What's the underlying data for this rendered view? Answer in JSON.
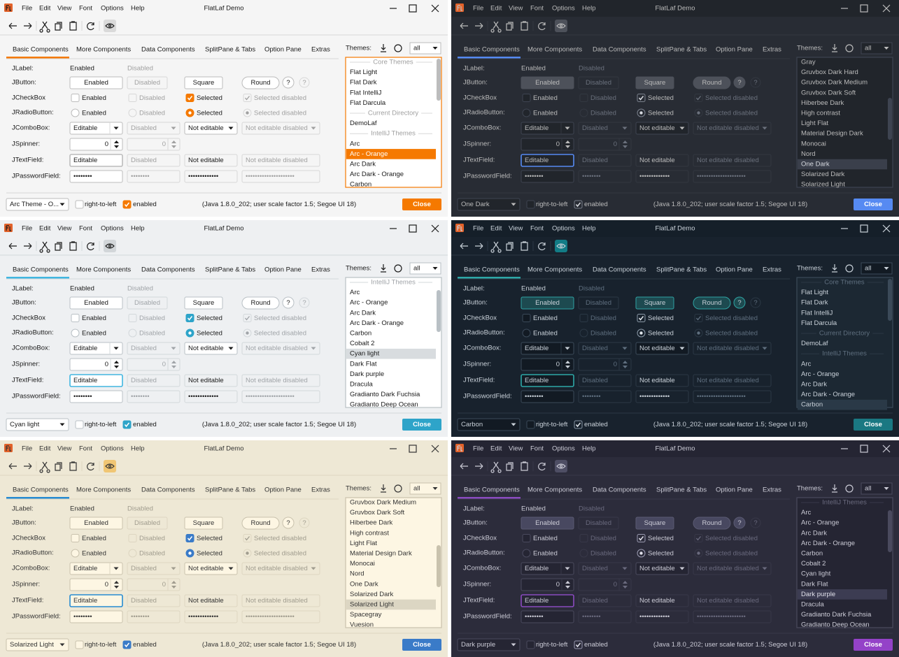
{
  "title": "FlatLaf Demo",
  "menus": [
    "File",
    "Edit",
    "View",
    "Font",
    "Options",
    "Help"
  ],
  "tabs": [
    "Basic Components",
    "More Components",
    "Data Components",
    "SplitPane & Tabs",
    "Option Pane",
    "Extras"
  ],
  "themes_label": "Themes:",
  "theme_filter": "all",
  "rows": [
    "JLabel:",
    "JButton:",
    "JCheckBox",
    "JRadioButton:",
    "JComboBox:",
    "JSpinner:",
    "JTextField:",
    "JPasswordField:"
  ],
  "label_row": [
    "Enabled",
    "Disabled"
  ],
  "button_row": [
    "Enabled",
    "Disabled",
    "Square",
    "Round"
  ],
  "help": "?",
  "checkbox_row": [
    "Enabled",
    "Disabled",
    "Selected",
    "Selected disabled"
  ],
  "radio_row": [
    "Enabled",
    "Disabled",
    "Selected",
    "Selected disabled"
  ],
  "combo_row": [
    "Editable",
    "Disabled",
    "Not editable",
    "Not editable disabled"
  ],
  "spinner_row": [
    "0",
    "0"
  ],
  "textfield_row": [
    "Editable",
    "Disabled",
    "Not editable",
    "Not editable disabled"
  ],
  "password_row": [
    "••••••••",
    "••••••••",
    "•••••••••••••",
    "•••••••••••••••••••••"
  ],
  "right_to_left": "right-to-left",
  "enabled": "enabled",
  "status": "(Java 1.8.0_202;  user scale factor 1.5; Segoe UI 18)",
  "close": "Close",
  "windows": [
    {
      "theme": "Arc Theme - O...",
      "selected": 9,
      "theme_list": [
        {
          "label": "Core Themes",
          "header": true
        },
        {
          "label": "Flat Light"
        },
        {
          "label": "Flat Dark"
        },
        {
          "label": "Flat IntelliJ"
        },
        {
          "label": "Flat Darcula"
        },
        {
          "label": "Current Directory",
          "header": true
        },
        {
          "label": "DemoLaf"
        },
        {
          "label": "IntelliJ Themes",
          "header": true
        },
        {
          "label": "Arc"
        },
        {
          "label": "Arc - Orange"
        },
        {
          "label": "Arc Dark"
        },
        {
          "label": "Arc Dark - Orange"
        },
        {
          "label": "Carbon"
        }
      ]
    },
    {
      "theme": "One Dark",
      "selected": 10,
      "theme_list": [
        {
          "label": "Gray"
        },
        {
          "label": "Gruvbox Dark Hard"
        },
        {
          "label": "Gruvbox Dark Medium"
        },
        {
          "label": "Gruvbox Dark Soft"
        },
        {
          "label": "Hiberbee Dark"
        },
        {
          "label": "High contrast"
        },
        {
          "label": "Light Flat"
        },
        {
          "label": "Material Design Dark"
        },
        {
          "label": "Monocai"
        },
        {
          "label": "Nord"
        },
        {
          "label": "One Dark"
        },
        {
          "label": "Solarized Dark"
        },
        {
          "label": "Solarized Light"
        }
      ]
    },
    {
      "theme": "Cyan light",
      "selected": 7,
      "theme_list": [
        {
          "label": "IntelliJ Themes",
          "header": true
        },
        {
          "label": "Arc"
        },
        {
          "label": "Arc - Orange"
        },
        {
          "label": "Arc Dark"
        },
        {
          "label": "Arc Dark - Orange"
        },
        {
          "label": "Carbon"
        },
        {
          "label": "Cobalt 2"
        },
        {
          "label": "Cyan light"
        },
        {
          "label": "Dark Flat"
        },
        {
          "label": "Dark purple"
        },
        {
          "label": "Dracula"
        },
        {
          "label": "Gradianto Dark Fuchsia"
        },
        {
          "label": "Gradianto Deep Ocean"
        }
      ]
    },
    {
      "theme": "Carbon",
      "selected": 12,
      "theme_list": [
        {
          "label": "Core Themes",
          "header": true
        },
        {
          "label": "Flat Light"
        },
        {
          "label": "Flat Dark"
        },
        {
          "label": "Flat IntelliJ"
        },
        {
          "label": "Flat Darcula"
        },
        {
          "label": "Current Directory",
          "header": true
        },
        {
          "label": "DemoLaf"
        },
        {
          "label": "IntelliJ Themes",
          "header": true
        },
        {
          "label": "Arc"
        },
        {
          "label": "Arc - Orange"
        },
        {
          "label": "Arc Dark"
        },
        {
          "label": "Arc Dark - Orange"
        },
        {
          "label": "Carbon"
        }
      ]
    },
    {
      "theme": "Solarized Light",
      "selected": 10,
      "theme_list": [
        {
          "label": "Gruvbox Dark Medium"
        },
        {
          "label": "Gruvbox Dark Soft"
        },
        {
          "label": "Hiberbee Dark"
        },
        {
          "label": "High contrast"
        },
        {
          "label": "Light Flat"
        },
        {
          "label": "Material Design Dark"
        },
        {
          "label": "Monocai"
        },
        {
          "label": "Nord"
        },
        {
          "label": "One Dark"
        },
        {
          "label": "Solarized Dark"
        },
        {
          "label": "Solarized Light"
        },
        {
          "label": "Spacegray"
        },
        {
          "label": "Vuesion"
        }
      ]
    },
    {
      "theme": "Dark purple",
      "selected": 9,
      "theme_list": [
        {
          "label": "IntelliJ Themes",
          "header": true
        },
        {
          "label": "Arc"
        },
        {
          "label": "Arc - Orange"
        },
        {
          "label": "Arc Dark"
        },
        {
          "label": "Arc Dark - Orange"
        },
        {
          "label": "Carbon"
        },
        {
          "label": "Cobalt 2"
        },
        {
          "label": "Cyan light"
        },
        {
          "label": "Dark Flat"
        },
        {
          "label": "Dark purple"
        },
        {
          "label": "Dracula"
        },
        {
          "label": "Gradianto Dark Fuchsia"
        },
        {
          "label": "Gradianto Deep Ocean"
        }
      ]
    }
  ]
}
